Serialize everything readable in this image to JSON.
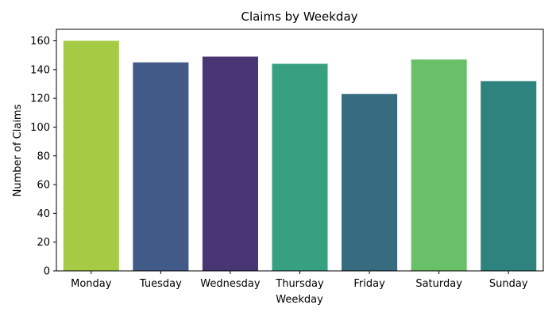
{
  "chart_data": {
    "type": "bar",
    "title": "Claims by Weekday",
    "xlabel": "Weekday",
    "ylabel": "Number of Claims",
    "categories": [
      "Monday",
      "Tuesday",
      "Wednesday",
      "Thursday",
      "Friday",
      "Saturday",
      "Sunday"
    ],
    "values": [
      160,
      145,
      149,
      144,
      123,
      147,
      132
    ],
    "colors": [
      "#a5cb44",
      "#415a87",
      "#483573",
      "#37a07f",
      "#376c80",
      "#6abf69",
      "#2e837e"
    ],
    "ylim": [
      0,
      168
    ],
    "yticks": [
      0,
      20,
      40,
      60,
      80,
      100,
      120,
      140,
      160
    ],
    "grid": false,
    "legend": "none"
  }
}
